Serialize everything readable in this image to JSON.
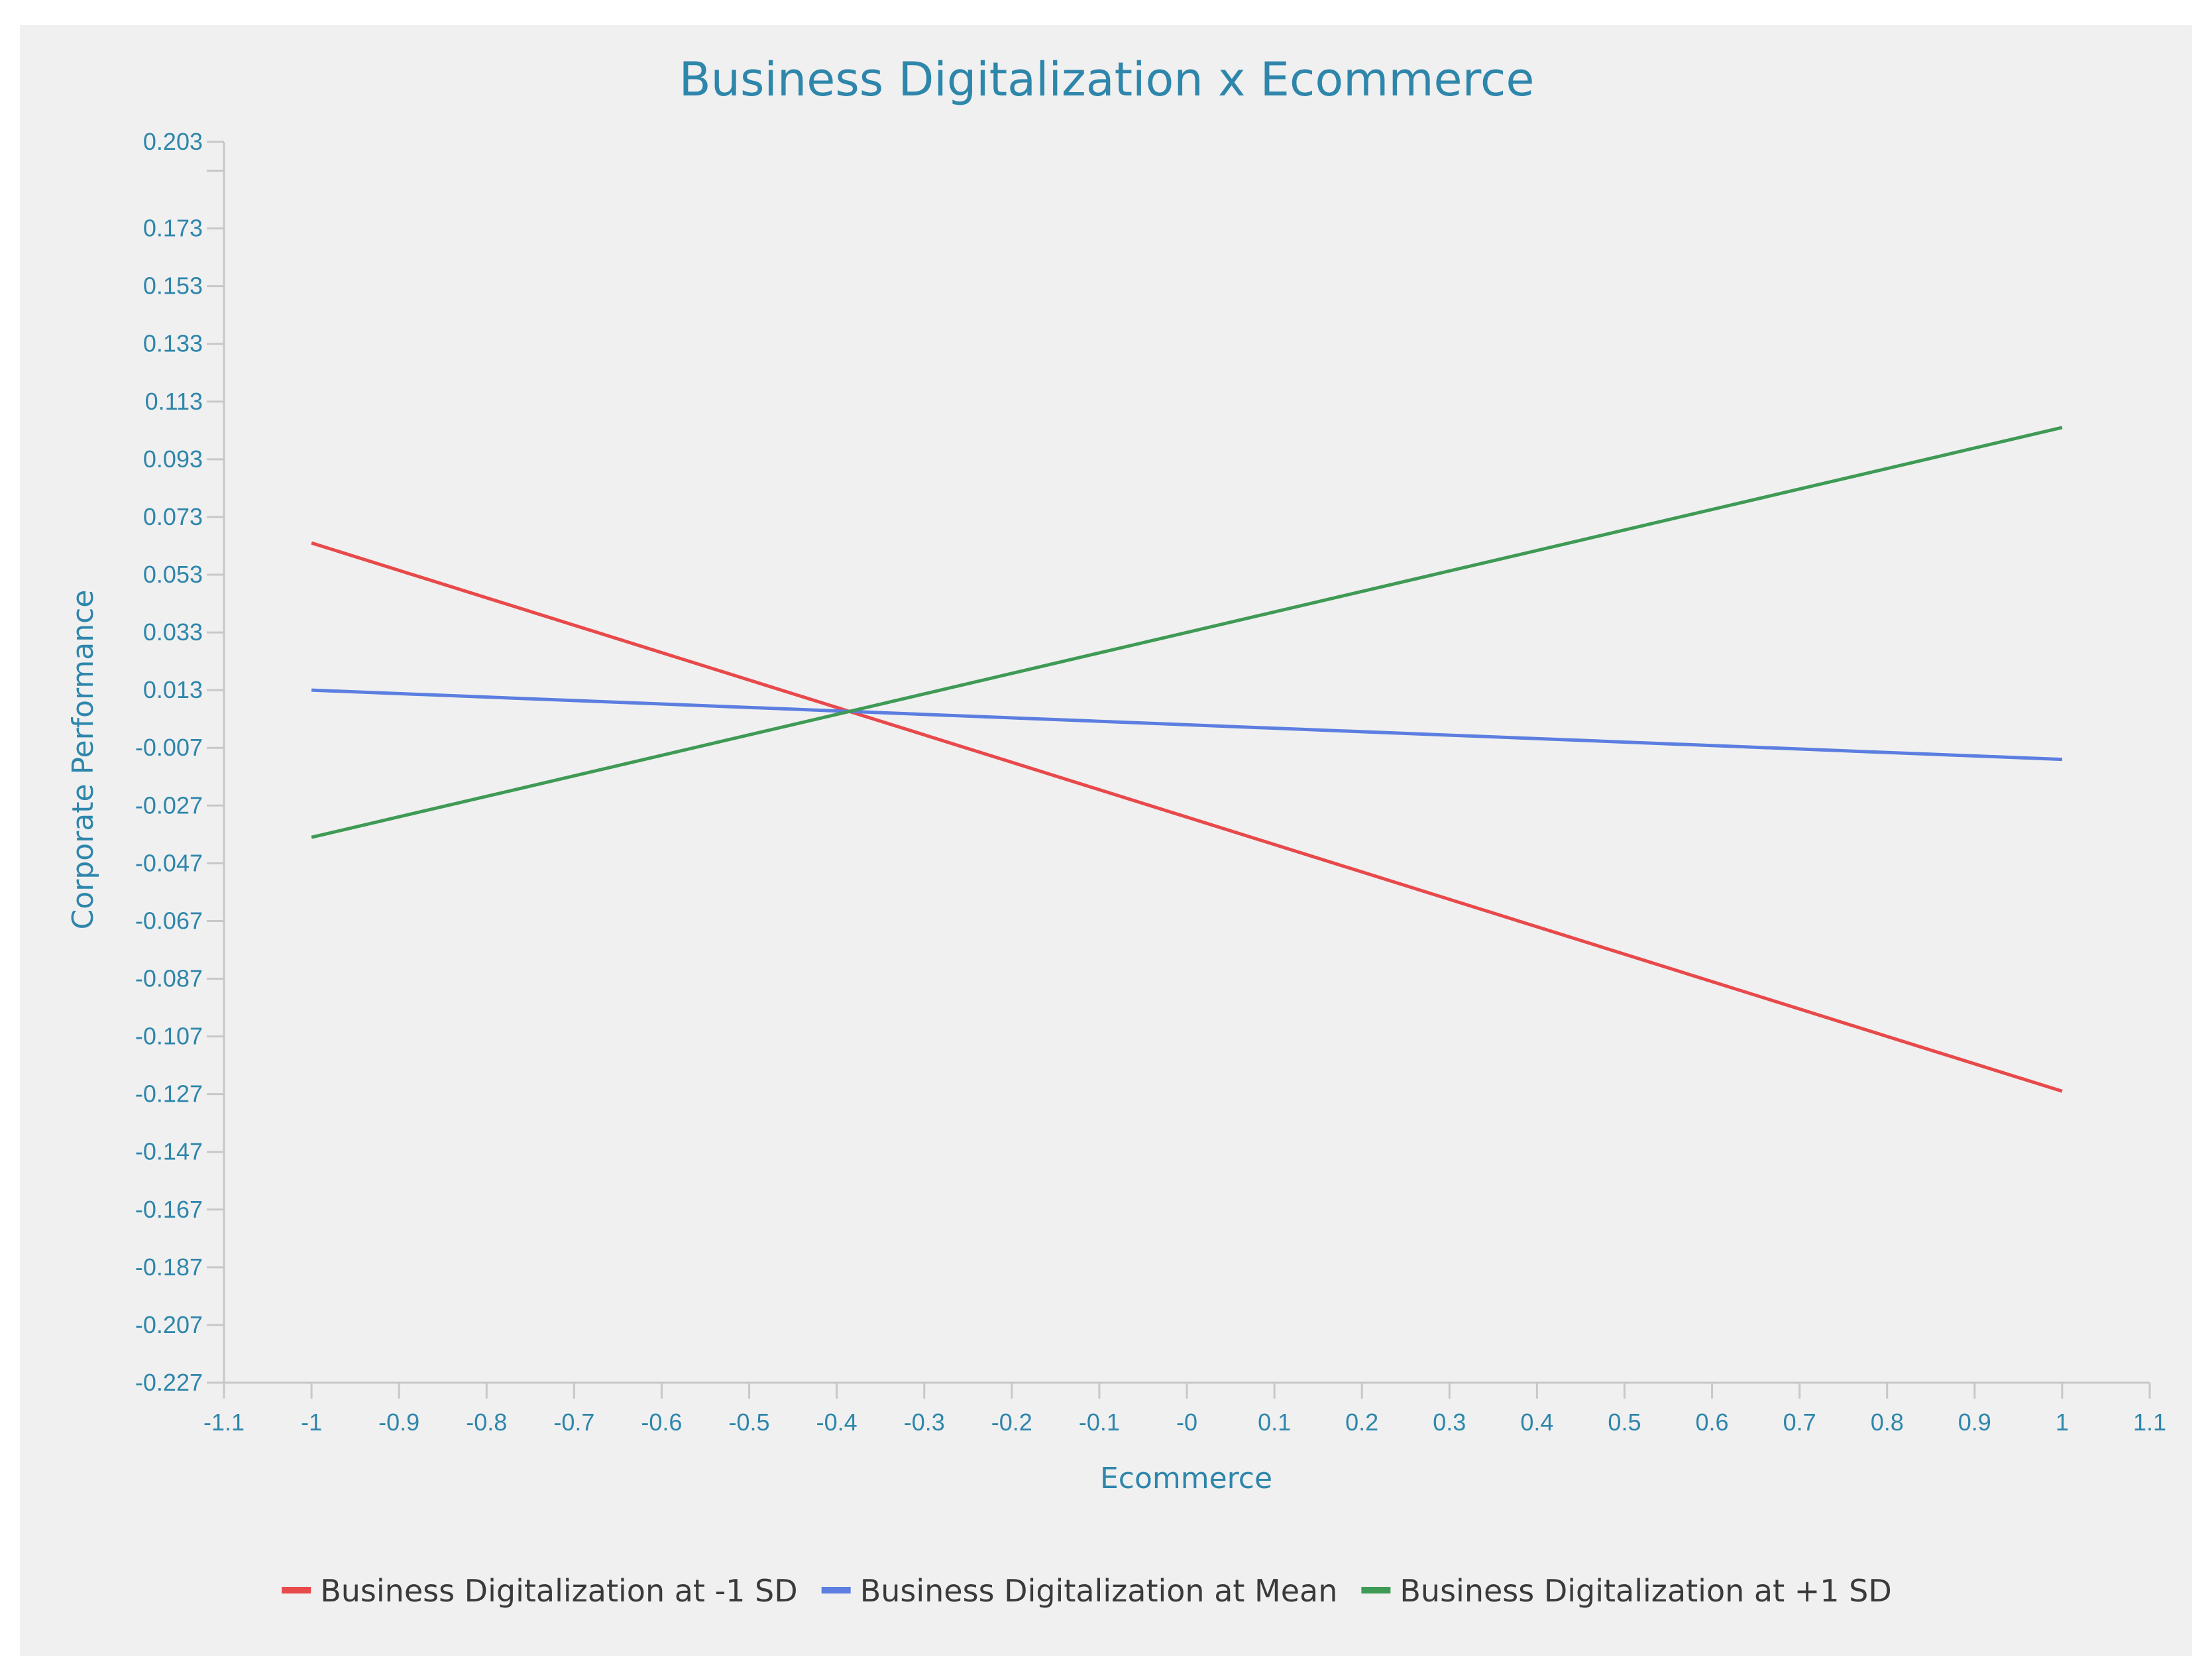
{
  "chart_data": {
    "type": "line",
    "title": "Business Digitalization x Ecommerce",
    "xlabel": "Ecommerce",
    "ylabel": "Corporate Performance",
    "xlim": [
      -1.1,
      1.1
    ],
    "ylim": [
      -0.227,
      0.203
    ],
    "x_ticks": [
      {
        "v": -1.1,
        "label": "-1.1"
      },
      {
        "v": -1.0,
        "label": "-1"
      },
      {
        "v": -0.9,
        "label": "-0.9"
      },
      {
        "v": -0.8,
        "label": "-0.8"
      },
      {
        "v": -0.7,
        "label": "-0.7"
      },
      {
        "v": -0.6,
        "label": "-0.6"
      },
      {
        "v": -0.5,
        "label": "-0.5"
      },
      {
        "v": -0.4,
        "label": "-0.4"
      },
      {
        "v": -0.3,
        "label": "-0.3"
      },
      {
        "v": -0.2,
        "label": "-0.2"
      },
      {
        "v": -0.1,
        "label": "-0.1"
      },
      {
        "v": 0.0,
        "label": "-0"
      },
      {
        "v": 0.1,
        "label": "0.1"
      },
      {
        "v": 0.2,
        "label": "0.2"
      },
      {
        "v": 0.3,
        "label": "0.3"
      },
      {
        "v": 0.4,
        "label": "0.4"
      },
      {
        "v": 0.5,
        "label": "0.5"
      },
      {
        "v": 0.6,
        "label": "0.6"
      },
      {
        "v": 0.7,
        "label": "0.7"
      },
      {
        "v": 0.8,
        "label": "0.8"
      },
      {
        "v": 0.9,
        "label": "0.9"
      },
      {
        "v": 1.0,
        "label": "1"
      },
      {
        "v": 1.1,
        "label": "1.1"
      }
    ],
    "y_ticks": [
      {
        "v": 0.203,
        "label": "0.203"
      },
      {
        "v": 0.173,
        "label": "0.173"
      },
      {
        "v": 0.153,
        "label": "0.153"
      },
      {
        "v": 0.133,
        "label": "0.133"
      },
      {
        "v": 0.113,
        "label": "0.113"
      },
      {
        "v": 0.093,
        "label": "0.093"
      },
      {
        "v": 0.073,
        "label": "0.073"
      },
      {
        "v": 0.053,
        "label": "0.053"
      },
      {
        "v": 0.033,
        "label": "0.033"
      },
      {
        "v": 0.013,
        "label": "0.013"
      },
      {
        "v": -0.007,
        "label": "-0.007"
      },
      {
        "v": -0.027,
        "label": "-0.027"
      },
      {
        "v": -0.047,
        "label": "-0.047"
      },
      {
        "v": -0.067,
        "label": "-0.067"
      },
      {
        "v": -0.087,
        "label": "-0.087"
      },
      {
        "v": -0.107,
        "label": "-0.107"
      },
      {
        "v": -0.127,
        "label": "-0.127"
      },
      {
        "v": -0.147,
        "label": "-0.147"
      },
      {
        "v": -0.167,
        "label": "-0.167"
      },
      {
        "v": -0.187,
        "label": "-0.187"
      },
      {
        "v": -0.207,
        "label": "-0.207"
      },
      {
        "v": -0.227,
        "label": "-0.227"
      }
    ],
    "y_minor_ticks": [
      0.193
    ],
    "grid": false,
    "legend_position": "bottom",
    "series": [
      {
        "name": "Business Digitalization at -1 SD",
        "color": "#e8494b",
        "x": [
          -1,
          1
        ],
        "y": [
          0.064,
          -0.126
        ]
      },
      {
        "name": "Business Digitalization at Mean",
        "color": "#5b7ee0",
        "x": [
          -1,
          1
        ],
        "y": [
          0.013,
          -0.011
        ]
      },
      {
        "name": "Business Digitalization at +1 SD",
        "color": "#3f9a55",
        "x": [
          -1,
          1
        ],
        "y": [
          -0.038,
          0.104
        ]
      }
    ]
  }
}
